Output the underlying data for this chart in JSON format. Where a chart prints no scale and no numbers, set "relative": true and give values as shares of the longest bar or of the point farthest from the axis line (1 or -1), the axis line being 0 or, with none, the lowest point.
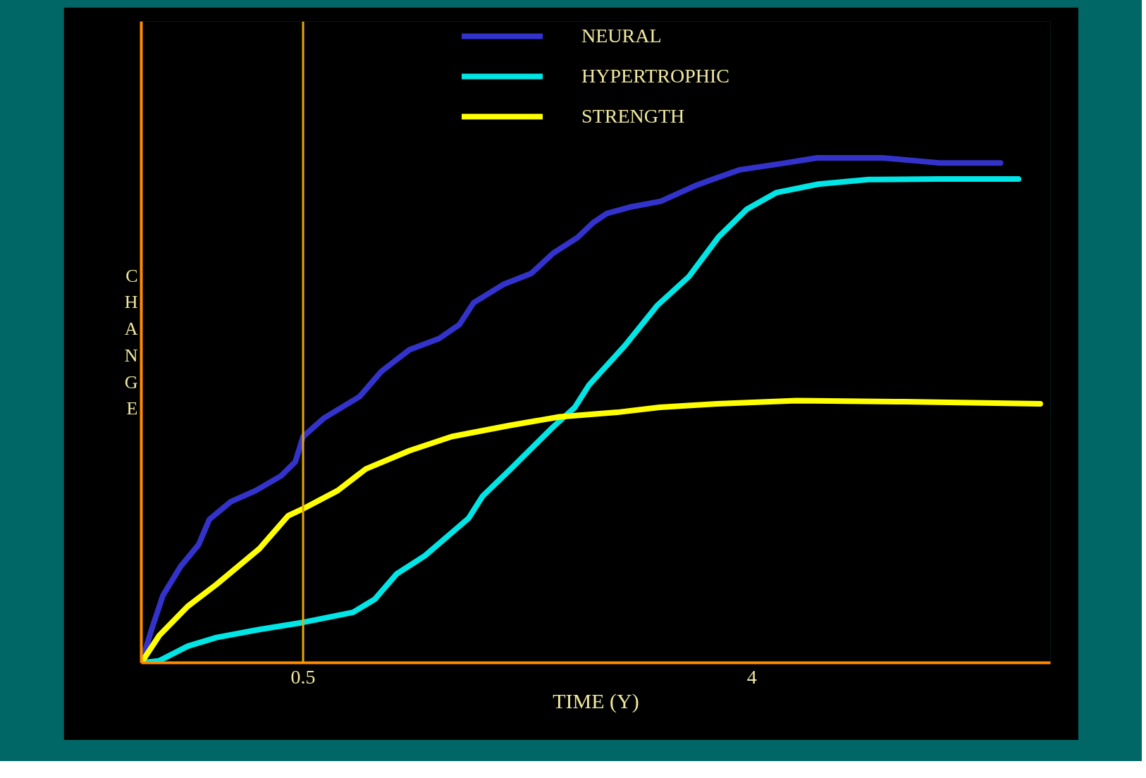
{
  "chart_data": {
    "type": "line",
    "xlabel": "TIME (Y)",
    "ylabel": "CHANGE",
    "relative": true,
    "xlim": [
      -0.762,
      6.33
    ],
    "xticks": [
      0.5,
      4
    ],
    "grid": false,
    "legend": "top",
    "marker": "none",
    "line_style": "solid",
    "ref_lines": [
      {
        "axis": "x",
        "value": 0.5,
        "color": "#e6a800"
      }
    ],
    "series": [
      {
        "name": "NEURAL",
        "color": "#3333cc",
        "x": [
          -0.762,
          -0.678,
          -0.594,
          -0.455,
          -0.315,
          -0.231,
          -0.064,
          0.131,
          0.327,
          0.439,
          0.5,
          0.66,
          0.94,
          1.11,
          1.33,
          1.56,
          1.72,
          1.83,
          2.06,
          2.28,
          2.45,
          2.64,
          2.76,
          2.87,
          3.06,
          3.29,
          3.57,
          3.9,
          4.24,
          4.51,
          5.02,
          5.46,
          5.94
        ],
        "values": [
          0,
          0.069,
          0.133,
          0.191,
          0.234,
          0.284,
          0.319,
          0.341,
          0.37,
          0.398,
          0.448,
          0.484,
          0.527,
          0.577,
          0.62,
          0.642,
          0.67,
          0.713,
          0.749,
          0.771,
          0.811,
          0.842,
          0.871,
          0.89,
          0.903,
          0.914,
          0.946,
          0.976,
          0.989,
          1,
          1,
          0.99,
          0.99
        ]
      },
      {
        "name": "HYPERTROPHIC",
        "color": "#00e5e5",
        "x": [
          -0.762,
          -0.622,
          -0.399,
          -0.176,
          0.159,
          0.5,
          0.89,
          1.06,
          1.23,
          1.45,
          1.79,
          1.9,
          2.12,
          2.45,
          2.62,
          2.73,
          3.01,
          3.26,
          3.51,
          3.74,
          3.96,
          4.19,
          4.52,
          4.91,
          5.46,
          6.08
        ],
        "values": [
          0,
          0.004,
          0.033,
          0.05,
          0.066,
          0.08,
          0.1,
          0.126,
          0.176,
          0.212,
          0.286,
          0.33,
          0.384,
          0.467,
          0.506,
          0.55,
          0.628,
          0.707,
          0.765,
          0.843,
          0.898,
          0.931,
          0.948,
          0.957,
          0.958,
          0.958
        ]
      },
      {
        "name": "STRENGTH",
        "color": "#ffff00",
        "x": [
          -0.762,
          -0.622,
          -0.399,
          -0.176,
          0.159,
          0.383,
          0.5,
          0.77,
          0.99,
          1.33,
          1.66,
          2.11,
          2.5,
          2.95,
          3.28,
          3.73,
          4.35,
          5.19,
          6.25
        ],
        "values": [
          0,
          0.054,
          0.112,
          0.155,
          0.226,
          0.291,
          0.305,
          0.341,
          0.384,
          0.42,
          0.448,
          0.47,
          0.487,
          0.496,
          0.506,
          0.513,
          0.519,
          0.517,
          0.513
        ]
      }
    ]
  }
}
